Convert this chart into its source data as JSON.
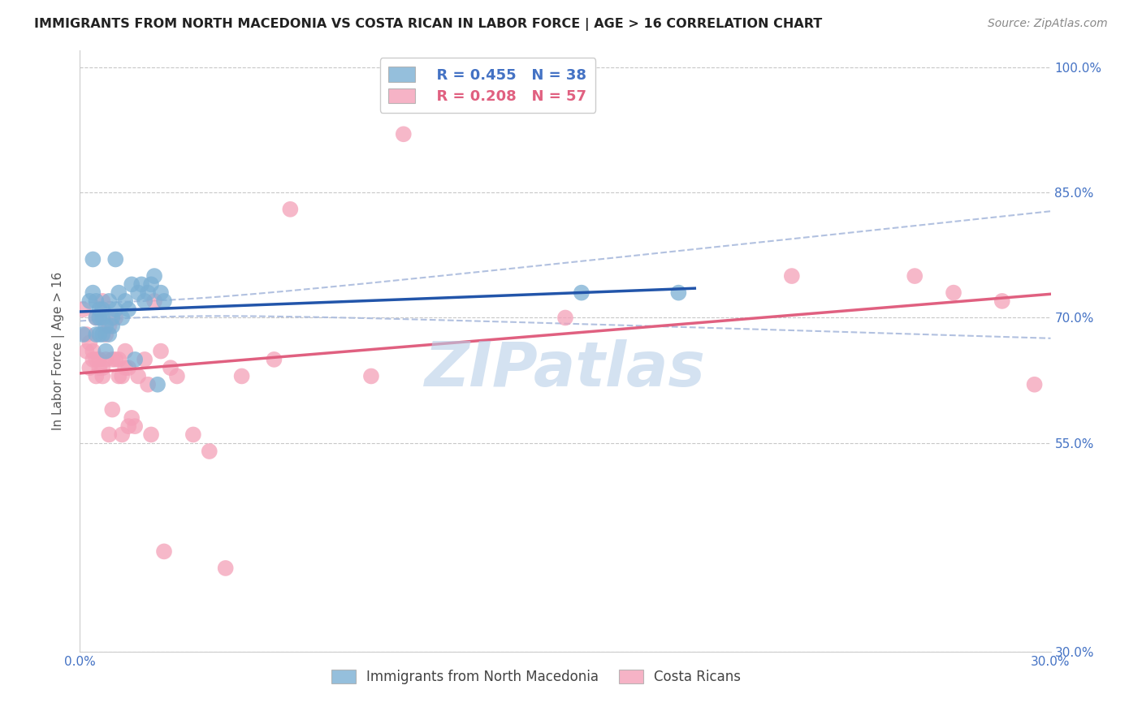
{
  "title": "IMMIGRANTS FROM NORTH MACEDONIA VS COSTA RICAN IN LABOR FORCE | AGE > 16 CORRELATION CHART",
  "source": "Source: ZipAtlas.com",
  "ylabel": "In Labor Force | Age > 16",
  "xlim": [
    0.0,
    0.3
  ],
  "ylim": [
    0.3,
    1.02
  ],
  "yticks": [
    0.3,
    0.55,
    0.7,
    0.85,
    1.0
  ],
  "ytick_labels": [
    "30.0%",
    "55.0%",
    "70.0%",
    "85.0%",
    "100.0%"
  ],
  "xticks": [
    0.0,
    0.05,
    0.1,
    0.15,
    0.2,
    0.25,
    0.3
  ],
  "xtick_labels": [
    "0.0%",
    "",
    "",
    "",
    "",
    "",
    "30.0%"
  ],
  "background_color": "#ffffff",
  "grid_color": "#c8c8c8",
  "title_color": "#222222",
  "axis_label_color": "#4472c4",
  "watermark_text": "ZIPatlas",
  "watermark_color": "#b8cfe8",
  "legend_R1": "R = 0.455",
  "legend_N1": "N = 38",
  "legend_R2": "R = 0.208",
  "legend_N2": "N = 57",
  "legend_color1": "#4472c4",
  "legend_color2": "#e06080",
  "macedonia_color": "#7bafd4",
  "costarica_color": "#f4a0b8",
  "trendline1_color": "#2255aa",
  "trendline2_color": "#e06080",
  "trendline1_ci_color": "#aabbdd",
  "macedonia_scatter_x": [
    0.001,
    0.003,
    0.004,
    0.004,
    0.005,
    0.005,
    0.005,
    0.006,
    0.006,
    0.006,
    0.007,
    0.007,
    0.007,
    0.008,
    0.008,
    0.009,
    0.009,
    0.01,
    0.01,
    0.011,
    0.011,
    0.012,
    0.013,
    0.014,
    0.015,
    0.016,
    0.017,
    0.018,
    0.019,
    0.02,
    0.021,
    0.022,
    0.023,
    0.024,
    0.025,
    0.026,
    0.155,
    0.185
  ],
  "macedonia_scatter_y": [
    0.68,
    0.72,
    0.77,
    0.73,
    0.7,
    0.72,
    0.68,
    0.68,
    0.7,
    0.71,
    0.68,
    0.7,
    0.71,
    0.66,
    0.69,
    0.68,
    0.72,
    0.69,
    0.7,
    0.71,
    0.77,
    0.73,
    0.7,
    0.72,
    0.71,
    0.74,
    0.65,
    0.73,
    0.74,
    0.72,
    0.73,
    0.74,
    0.75,
    0.62,
    0.73,
    0.72,
    0.73,
    0.73
  ],
  "costarica_scatter_x": [
    0.001,
    0.002,
    0.002,
    0.003,
    0.003,
    0.004,
    0.004,
    0.005,
    0.005,
    0.005,
    0.006,
    0.006,
    0.006,
    0.007,
    0.007,
    0.007,
    0.008,
    0.008,
    0.009,
    0.009,
    0.01,
    0.01,
    0.011,
    0.011,
    0.012,
    0.012,
    0.013,
    0.013,
    0.014,
    0.014,
    0.015,
    0.015,
    0.016,
    0.017,
    0.018,
    0.02,
    0.021,
    0.022,
    0.023,
    0.025,
    0.026,
    0.028,
    0.03,
    0.035,
    0.04,
    0.045,
    0.05,
    0.06,
    0.065,
    0.09,
    0.1,
    0.15,
    0.22,
    0.258,
    0.27,
    0.285,
    0.295
  ],
  "costarica_scatter_y": [
    0.71,
    0.66,
    0.68,
    0.64,
    0.67,
    0.65,
    0.66,
    0.63,
    0.65,
    0.7,
    0.64,
    0.65,
    0.7,
    0.63,
    0.64,
    0.72,
    0.65,
    0.68,
    0.56,
    0.69,
    0.59,
    0.65,
    0.65,
    0.7,
    0.63,
    0.65,
    0.56,
    0.63,
    0.64,
    0.66,
    0.57,
    0.64,
    0.58,
    0.57,
    0.63,
    0.65,
    0.62,
    0.56,
    0.72,
    0.66,
    0.42,
    0.64,
    0.63,
    0.56,
    0.54,
    0.4,
    0.63,
    0.65,
    0.83,
    0.63,
    0.92,
    0.7,
    0.75,
    0.75,
    0.73,
    0.72,
    0.62
  ],
  "trendline1_x_end": 0.19,
  "trendline1_ci_x_end": 0.3
}
